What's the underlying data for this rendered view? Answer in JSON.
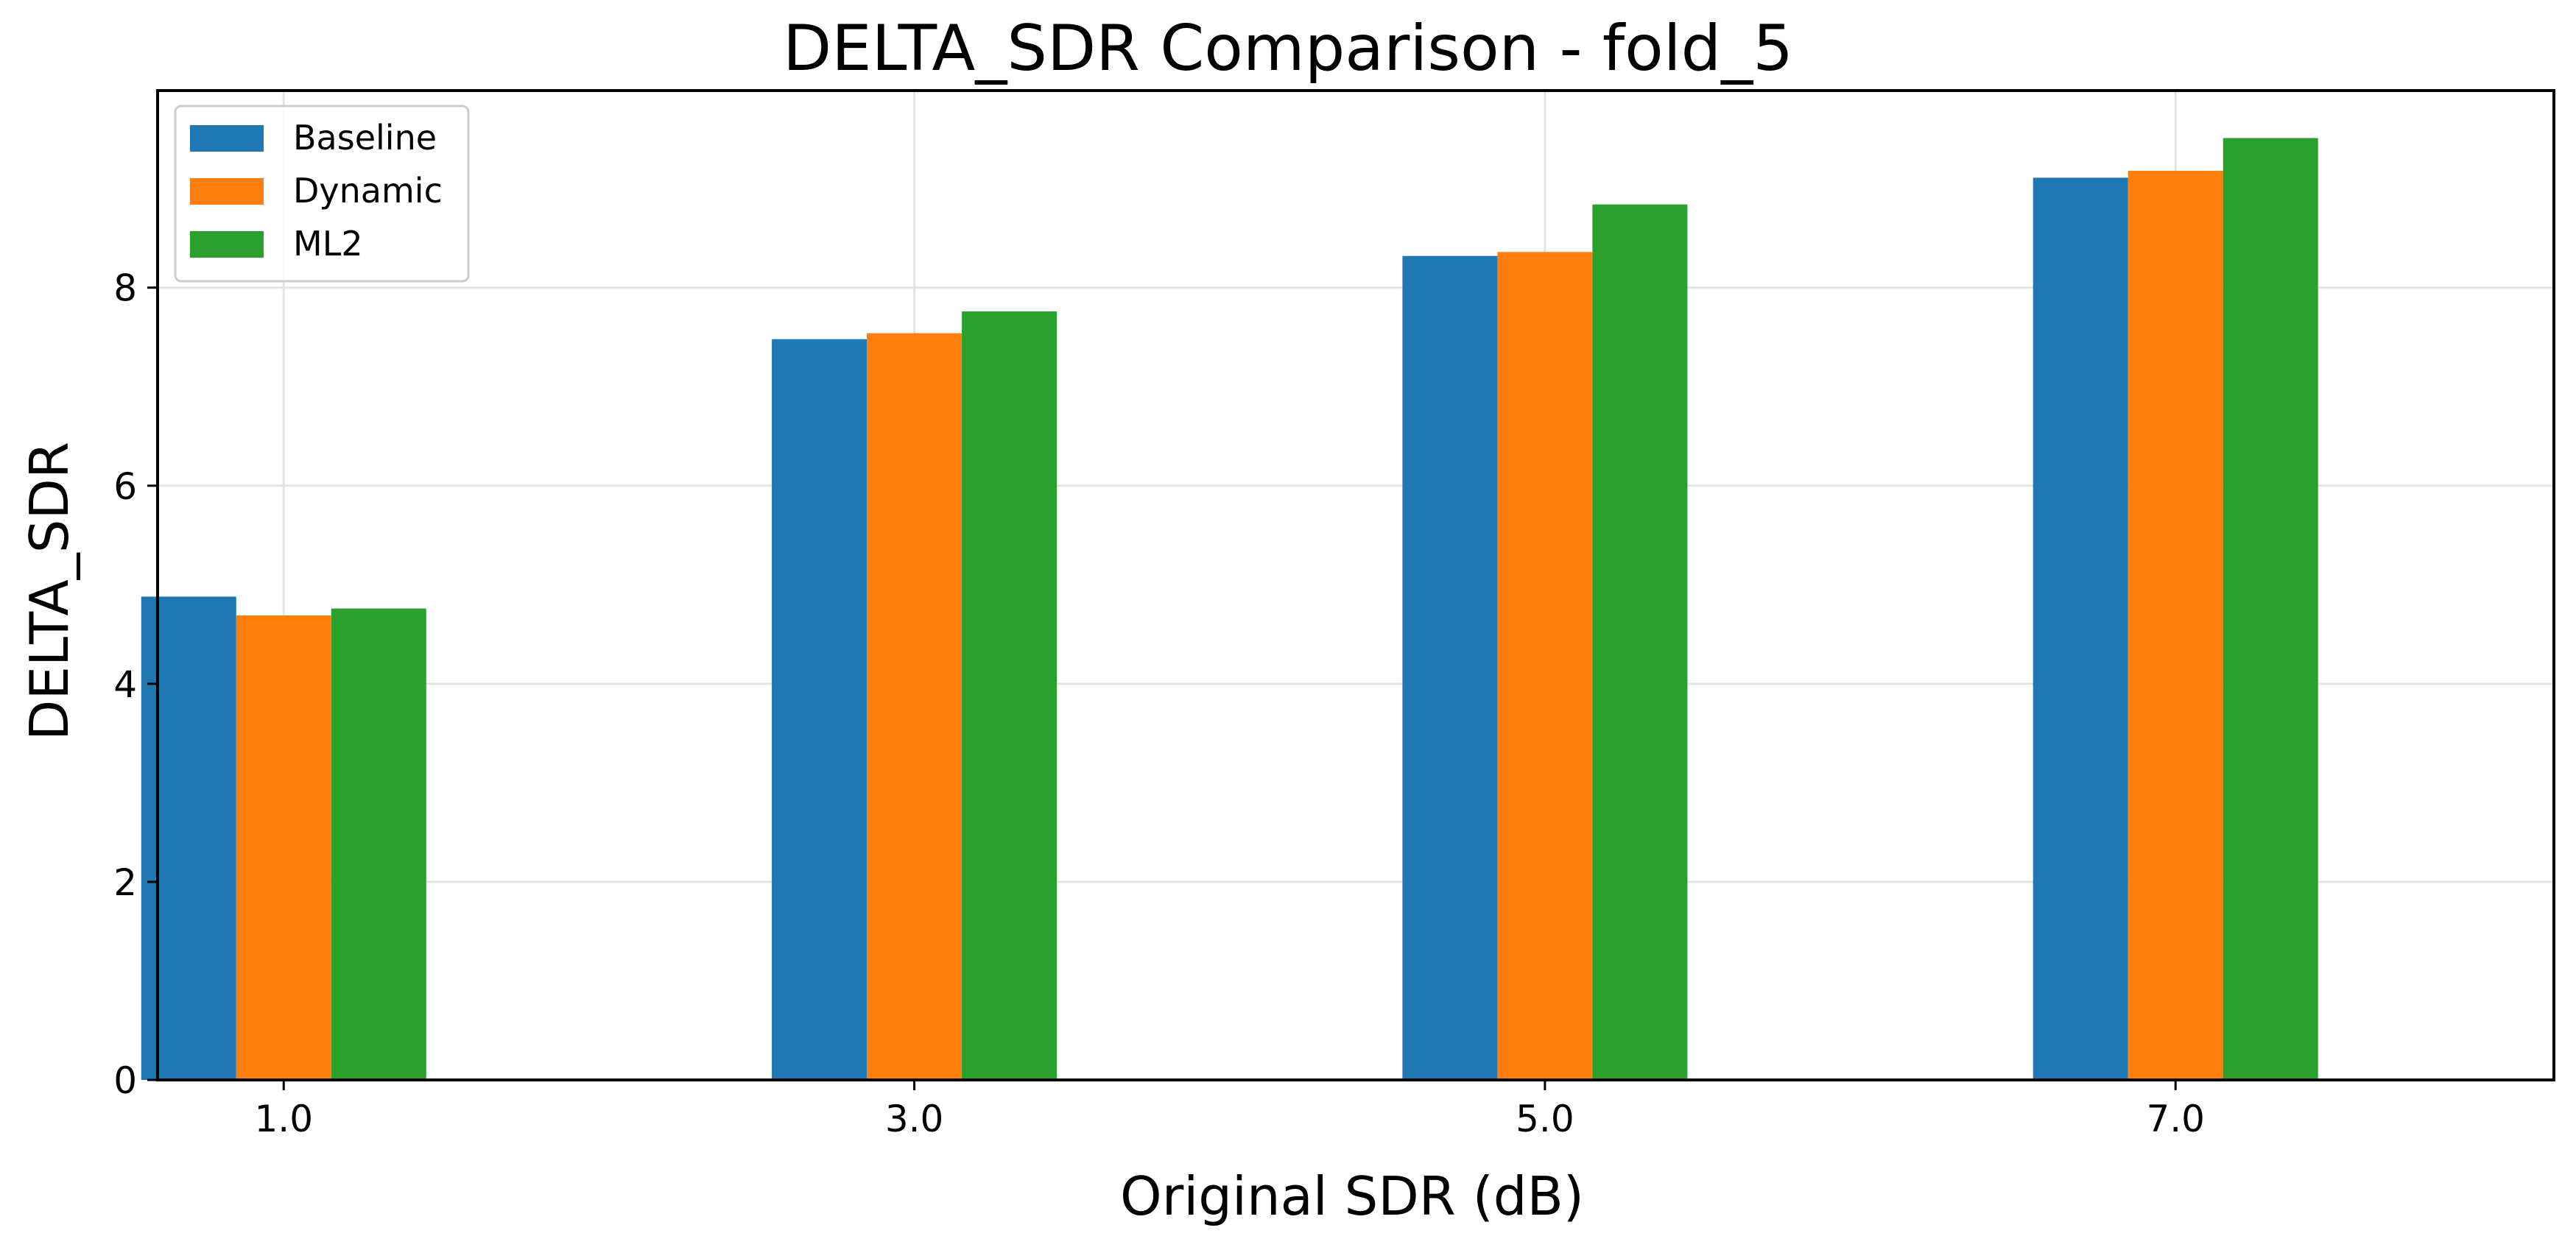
{
  "chart_data": {
    "type": "bar",
    "title": "DELTA_SDR Comparison - fold_5",
    "xlabel": "Original SDR (dB)",
    "ylabel": "DELTA_SDR",
    "categories": [
      "1.0",
      "3.0",
      "5.0",
      "7.0"
    ],
    "series": [
      {
        "name": "Baseline",
        "color": "#1f77b4",
        "values": [
          4.88,
          7.48,
          8.32,
          9.11
        ]
      },
      {
        "name": "Dynamic",
        "color": "#ff7f0e",
        "values": [
          4.69,
          7.54,
          8.36,
          9.18
        ]
      },
      {
        "name": "ML2",
        "color": "#2ca02c",
        "values": [
          4.76,
          7.76,
          8.84,
          9.51
        ]
      }
    ],
    "ylim": [
      0,
      9.99
    ],
    "yticks": [
      "0",
      "2",
      "4",
      "6",
      "8"
    ],
    "grid": true,
    "legend_position": "top-left"
  }
}
